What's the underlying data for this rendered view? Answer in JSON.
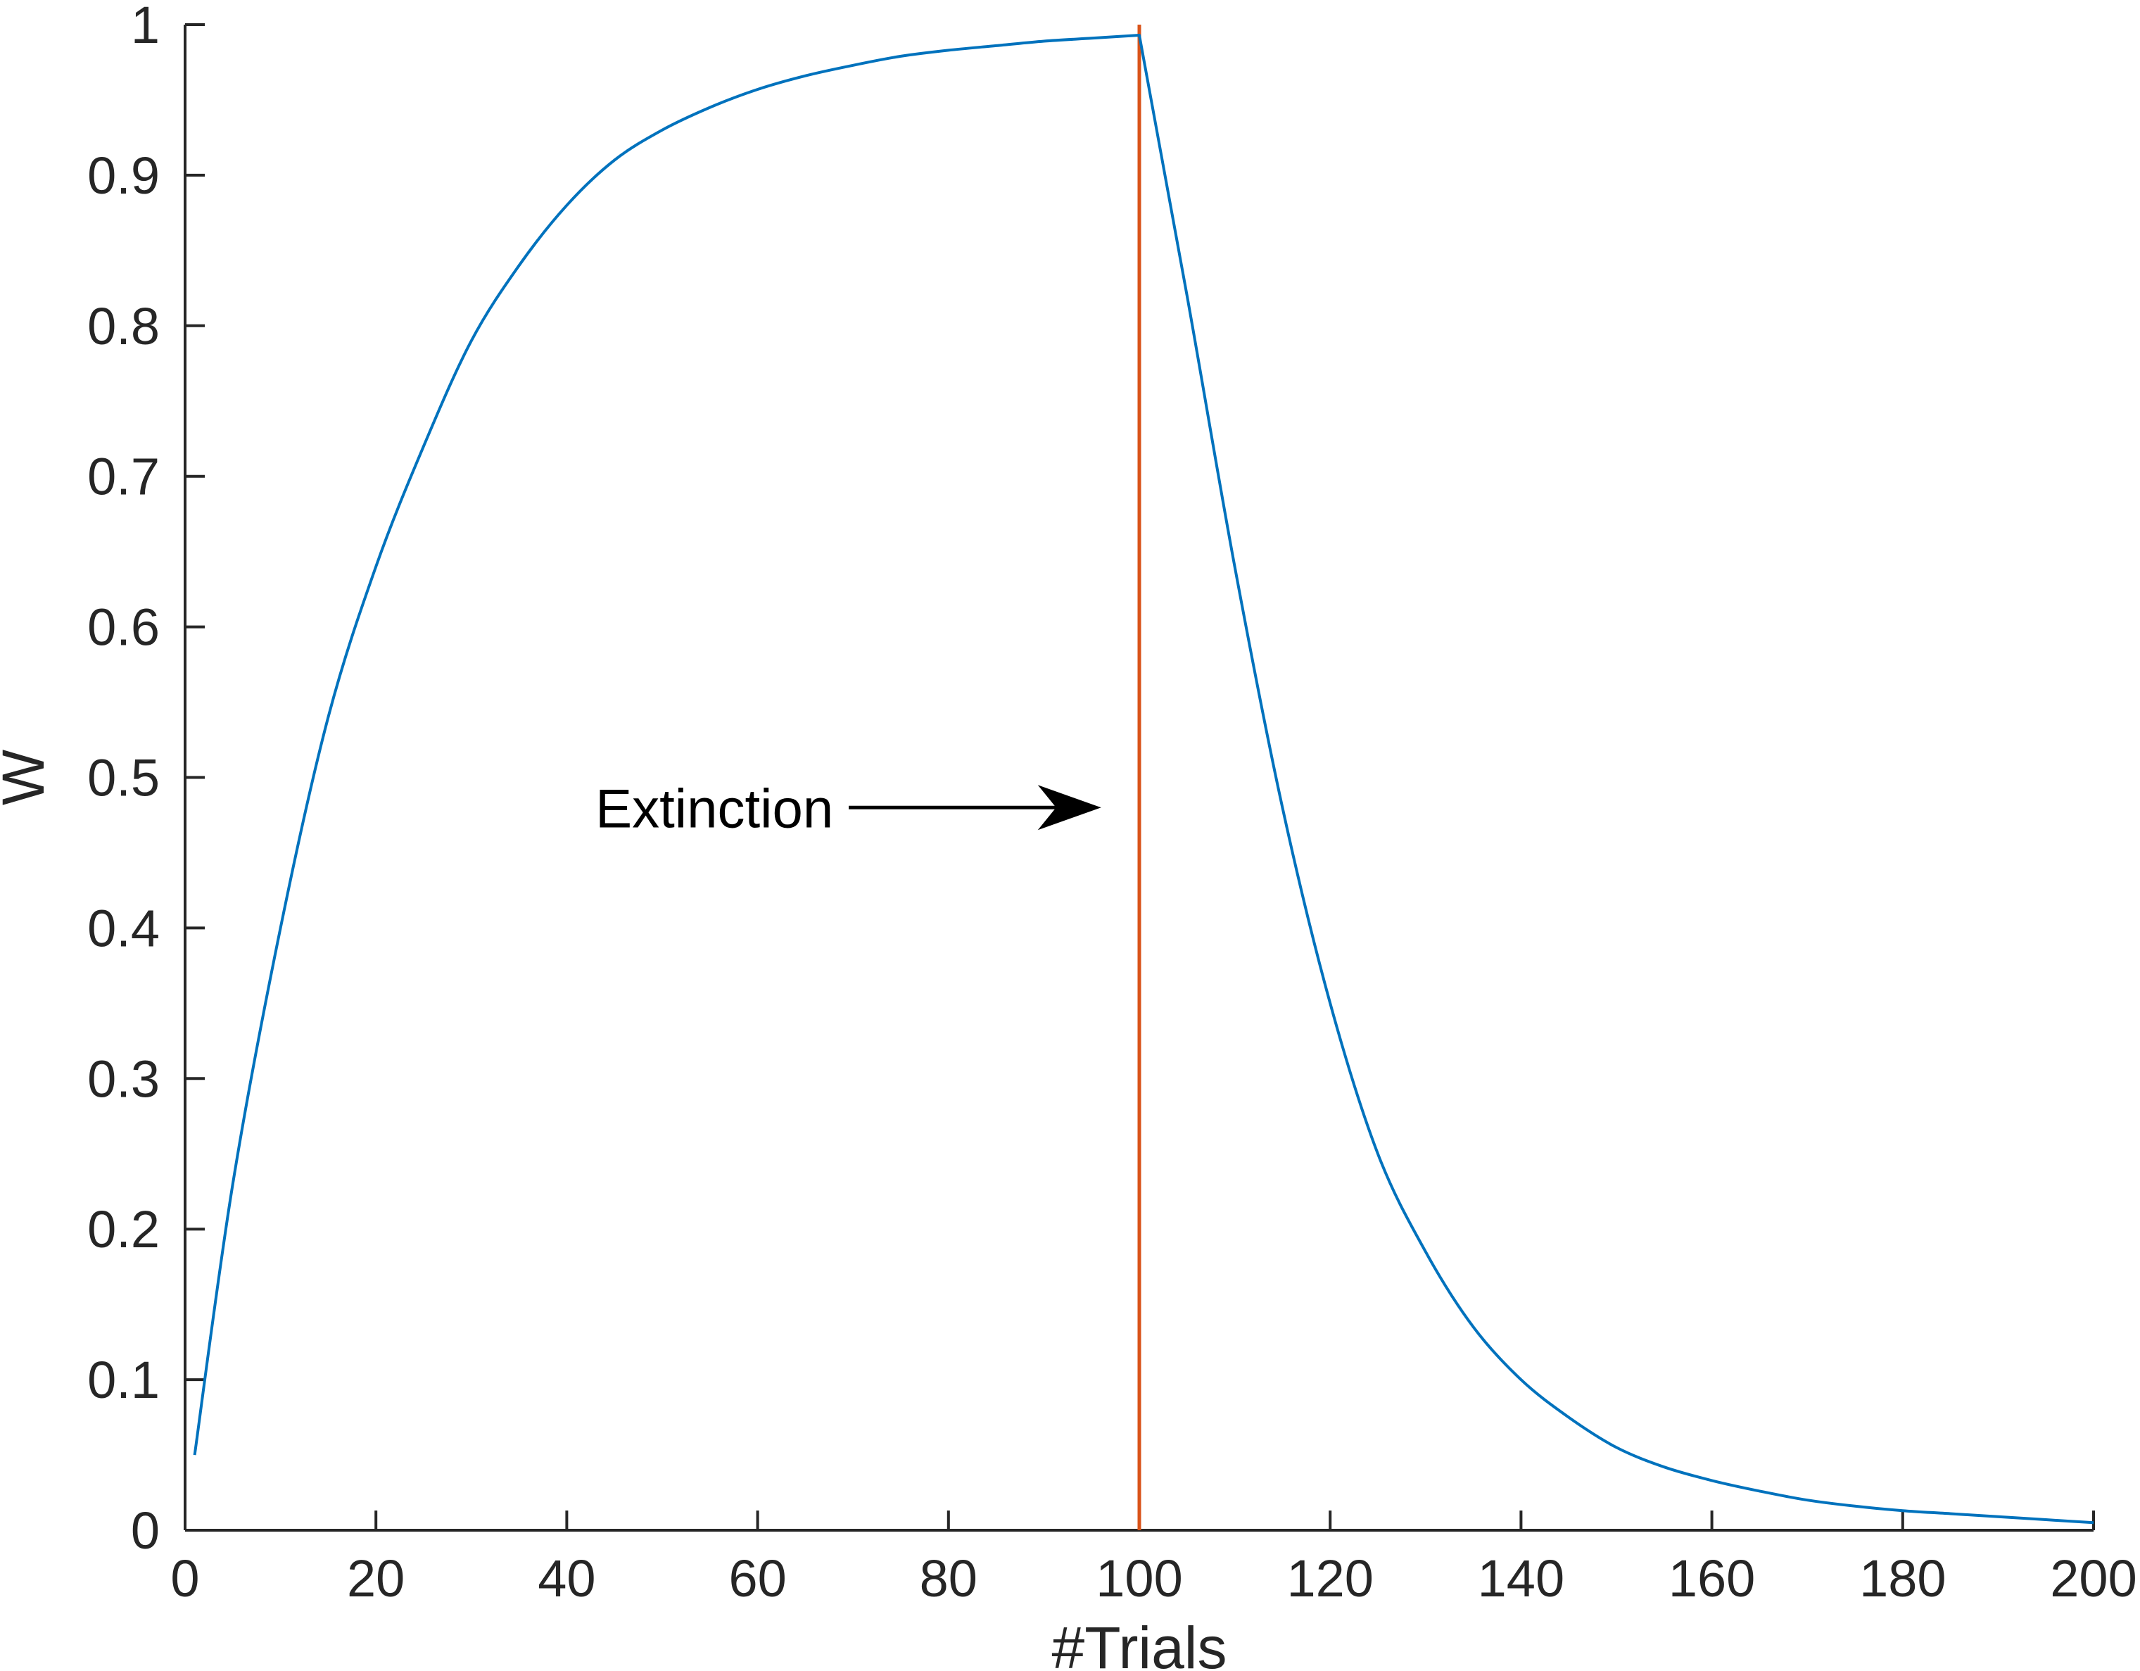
{
  "chart_data": {
    "type": "line",
    "title": "",
    "xlabel": "#Trials",
    "ylabel": "W",
    "xlim": [
      0,
      200
    ],
    "ylim": [
      0,
      1
    ],
    "grid": false,
    "x_ticks": [
      0,
      20,
      40,
      60,
      80,
      100,
      120,
      140,
      160,
      180,
      200
    ],
    "x_tick_labels": [
      "0",
      "20",
      "40",
      "60",
      "80",
      "100",
      "120",
      "140",
      "160",
      "180",
      "200"
    ],
    "y_ticks": [
      0,
      0.1,
      0.2,
      0.3,
      0.4,
      0.5,
      0.6,
      0.7,
      0.8,
      0.9,
      1
    ],
    "y_tick_labels": [
      "0",
      "0.1",
      "0.2",
      "0.3",
      "0.4",
      "0.5",
      "0.6",
      "0.7",
      "0.8",
      "0.9",
      "1"
    ],
    "series": [
      {
        "color": "#0072BD",
        "x": [
          1,
          5,
          10,
          15,
          20,
          25,
          30,
          35,
          40,
          45,
          50,
          55,
          60,
          65,
          70,
          75,
          80,
          85,
          90,
          95,
          100,
          105,
          110,
          115,
          120,
          125,
          130,
          135,
          140,
          145,
          150,
          155,
          160,
          165,
          170,
          175,
          180,
          185,
          190,
          195,
          200
        ],
        "y": [
          0.05,
          0.23,
          0.4,
          0.54,
          0.64,
          0.72,
          0.79,
          0.84,
          0.88,
          0.91,
          0.93,
          0.945,
          0.957,
          0.966,
          0.973,
          0.979,
          0.983,
          0.986,
          0.989,
          0.991,
          0.993,
          0.82,
          0.64,
          0.48,
          0.35,
          0.25,
          0.185,
          0.135,
          0.1,
          0.075,
          0.055,
          0.042,
          0.033,
          0.026,
          0.02,
          0.016,
          0.013,
          0.011,
          0.009,
          0.007,
          0.005
        ]
      }
    ],
    "vertical_lines": [
      {
        "x": 100,
        "color": "#D95319"
      }
    ],
    "annotations": [
      {
        "text": "Extinction",
        "y": 0.48,
        "x_text_start": 43,
        "x_arrow_end": 96,
        "color": "#000000"
      }
    ]
  }
}
